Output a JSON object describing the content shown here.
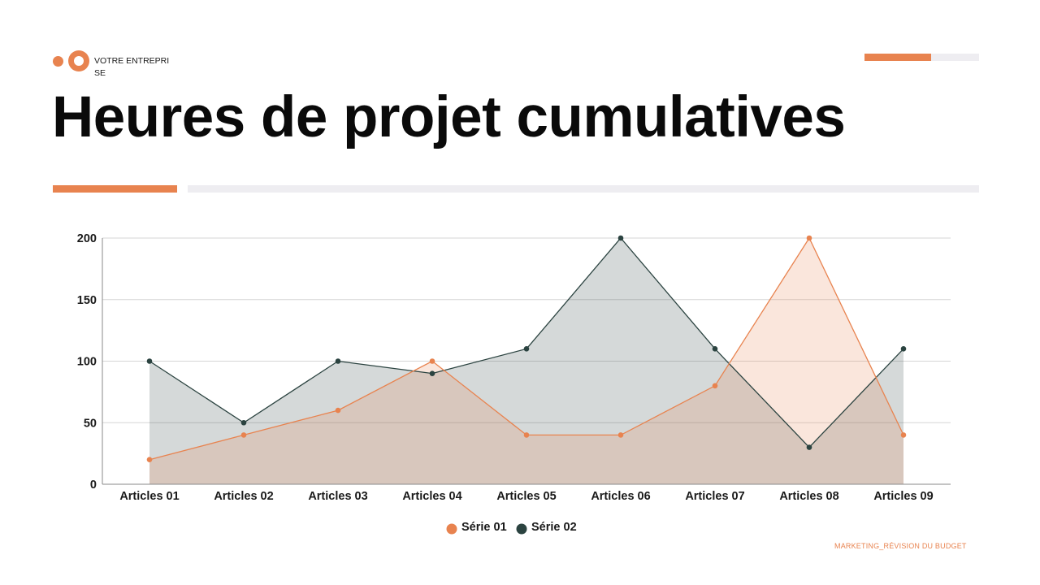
{
  "header": {
    "company": "VOTRE ENTREPRISE",
    "title": "Heures de projet cumulatives"
  },
  "footer": {
    "text": "MARKETING_RÉVISION DU BUDGET"
  },
  "colors": {
    "accent": "#E8834F",
    "dark": "#2B4340",
    "light_gray": "#EEEDF1"
  },
  "chart_data": {
    "type": "area",
    "title": "",
    "xlabel": "",
    "ylabel": "",
    "categories": [
      "Articles 01",
      "Articles 02",
      "Articles 03",
      "Articles 04",
      "Articles 05",
      "Articles 06",
      "Articles 07",
      "Articles 08",
      "Articles 09"
    ],
    "series": [
      {
        "name": "Série 01",
        "color": "#E8834F",
        "values": [
          20,
          40,
          60,
          100,
          40,
          40,
          80,
          200,
          40
        ]
      },
      {
        "name": "Série 02",
        "color": "#2B4340",
        "values": [
          100,
          50,
          100,
          90,
          110,
          200,
          110,
          30,
          110
        ]
      }
    ],
    "ylim": [
      0,
      200
    ],
    "yticks": [
      0,
      50,
      100,
      150,
      200
    ],
    "grid": true,
    "legend": "bottom"
  }
}
